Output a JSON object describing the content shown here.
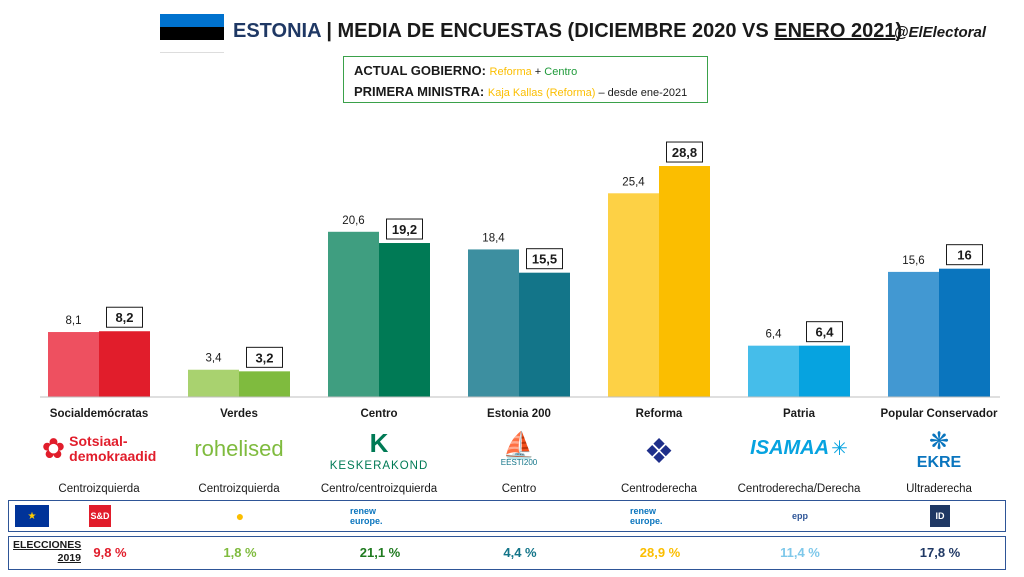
{
  "header": {
    "country": "ESTONIA",
    "separator": " | ",
    "title_main": "MEDIA DE ENCUESTAS (DICIEMBRE 2020 VS ",
    "title_underlined": "ENERO 2021",
    "title_end": ")",
    "handle": "@ElElectoral",
    "flag_colors": [
      "#0072ce",
      "#000000",
      "#ffffff"
    ]
  },
  "government": {
    "gov_label": "ACTUAL GOBIERNO: ",
    "gov_party1": "Reforma",
    "gov_plus": " + ",
    "gov_party2": "Centro",
    "pm_label": "PRIMERA MINISTRA: ",
    "pm_name": "Kaja Kallas (Reforma)",
    "pm_since": " – desde ene-2021"
  },
  "chart_data": {
    "type": "bar",
    "categories": [
      "Socialdemócratas",
      "Verdes",
      "Centro",
      "Estonia 200",
      "Reforma",
      "Patria",
      "Popular Conservador"
    ],
    "series": [
      {
        "values": [
          8.1,
          3.4,
          20.6,
          18.4,
          25.4,
          6.4,
          15.6
        ]
      },
      {
        "values": [
          8.2,
          3.2,
          19.2,
          15.5,
          28.8,
          6.4,
          16
        ]
      }
    ],
    "value_labels_dec": [
      "8,1",
      "3,4",
      "20,6",
      "18,4",
      "25,4",
      "6,4",
      "15,6"
    ],
    "value_labels_jan": [
      "8,2",
      "3,2",
      "19,2",
      "15,5",
      "28,8",
      "6,4",
      "16"
    ],
    "colors_dec": [
      "#ee5060",
      "#a9d26f",
      "#3f9e80",
      "#3d8fa0",
      "#fdd145",
      "#45bdea",
      "#4298d2"
    ],
    "colors_jan": [
      "#e11d2b",
      "#7fbb3e",
      "#007a55",
      "#137589",
      "#fbbe00",
      "#06a3e0",
      "#0a75be"
    ],
    "ylim": [
      0,
      30
    ],
    "grid": false
  },
  "parties": [
    {
      "logo": "Sotsiaal-",
      "logo2": "demokraadid",
      "ideology": "Centroizquierda",
      "color": "#e11d2b"
    },
    {
      "logo": "rohelised",
      "logo2": "",
      "ideology": "Centroizquierda",
      "color": "#7fbb3e"
    },
    {
      "logo": "K",
      "logo2": "KESKERAKOND",
      "ideology": "Centro/centroizquierda",
      "color": "#007a55"
    },
    {
      "logo": "EESTI200",
      "logo2": "",
      "ideology": "Centro",
      "color": "#137589"
    },
    {
      "logo": "",
      "logo2": "",
      "ideology": "Centroderecha",
      "color": "#1f2f8a"
    },
    {
      "logo": "ISAMAA",
      "logo2": "",
      "ideology": "Centroderecha/Derecha",
      "color": "#06a3e0"
    },
    {
      "logo": "EKRE",
      "logo2": "",
      "ideology": "Ultraderecha",
      "color": "#0a75be"
    }
  ],
  "eu_groups": [
    "S&D",
    "",
    "renew europe.",
    "",
    "renew europe.",
    "epp",
    "ID"
  ],
  "elections": {
    "label_line1": "ELECCIONES",
    "label_line2": "2019",
    "results": [
      "9,8 %",
      "1,8 %",
      "21,1 %",
      "4,4 %",
      "28,9 %",
      "11,4 %",
      "17,8 %"
    ],
    "colors": [
      "#e11d2b",
      "#7fbb3e",
      "#1f7a1f",
      "#137589",
      "#fbbe00",
      "#7ec8ea",
      "#1f3864"
    ]
  }
}
